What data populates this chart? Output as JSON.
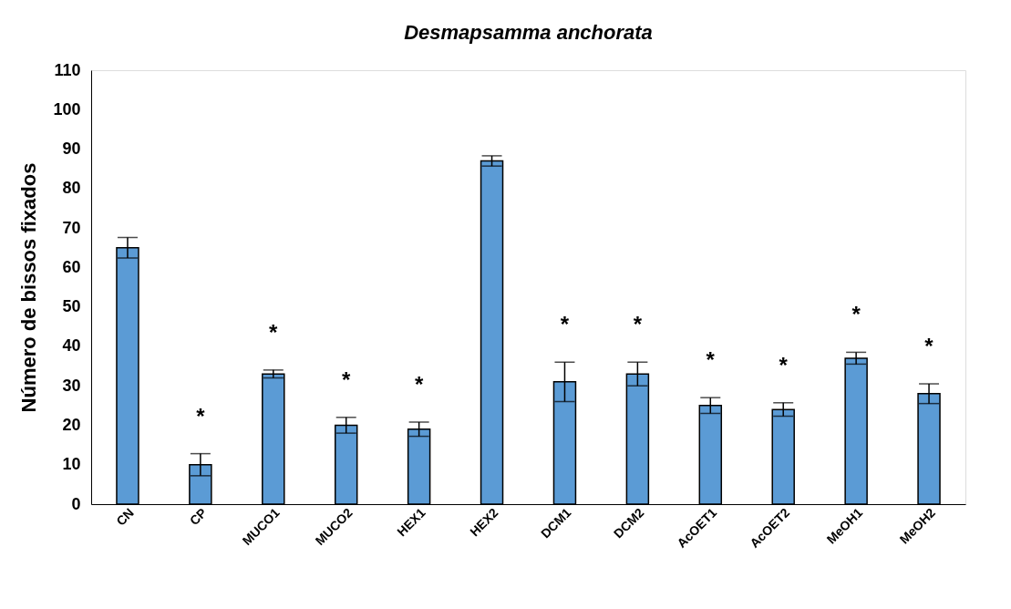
{
  "chart_data": {
    "type": "bar",
    "title": "Desmapsamma anchorata",
    "ylabel": "Número de bissos fixados",
    "categories": [
      "CN",
      "CP",
      "MUCO1",
      "MUCO2",
      "HEX1",
      "HEX2",
      "DCM1",
      "DCM2",
      "AcOET1",
      "AcOET2",
      "MeOH1",
      "MeOH2"
    ],
    "values": [
      65,
      10,
      33,
      20,
      19,
      87,
      31,
      33,
      25,
      24,
      37,
      28
    ],
    "errors": [
      2.6,
      2.8,
      1,
      2,
      1.8,
      1.3,
      5,
      3,
      2,
      1.7,
      1.5,
      2.5
    ],
    "value_labels": [
      null,
      "*",
      "*",
      "*",
      "*",
      null,
      "*",
      "*",
      "*",
      "*",
      "*",
      "*"
    ],
    "color": "#5b9bd5",
    "ylim": [
      0,
      110
    ],
    "yticks": [
      0,
      10,
      20,
      30,
      40,
      50,
      60,
      70,
      80,
      90,
      100,
      110
    ],
    "grid": false
  }
}
